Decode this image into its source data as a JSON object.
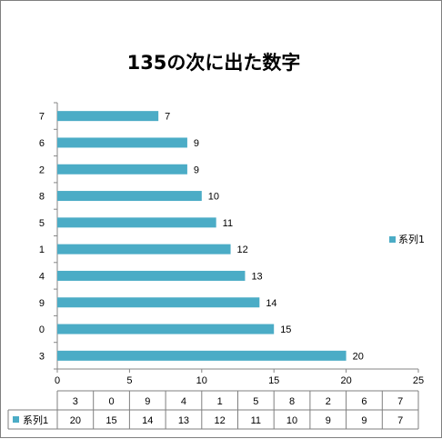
{
  "chart_data": {
    "type": "bar",
    "orientation": "horizontal",
    "title": "135の次に出た数字",
    "categories": [
      "3",
      "0",
      "9",
      "4",
      "1",
      "5",
      "8",
      "2",
      "6",
      "7"
    ],
    "series": [
      {
        "name": "系列1",
        "values": [
          20,
          15,
          14,
          13,
          12,
          11,
          10,
          9,
          9,
          7
        ],
        "color": "#4bacc6"
      }
    ],
    "xlim": [
      0,
      25
    ],
    "xticks": [
      0,
      5,
      10,
      15,
      20,
      25
    ],
    "data_labels": true,
    "data_table": true,
    "grid": false,
    "legend_position": "right"
  }
}
